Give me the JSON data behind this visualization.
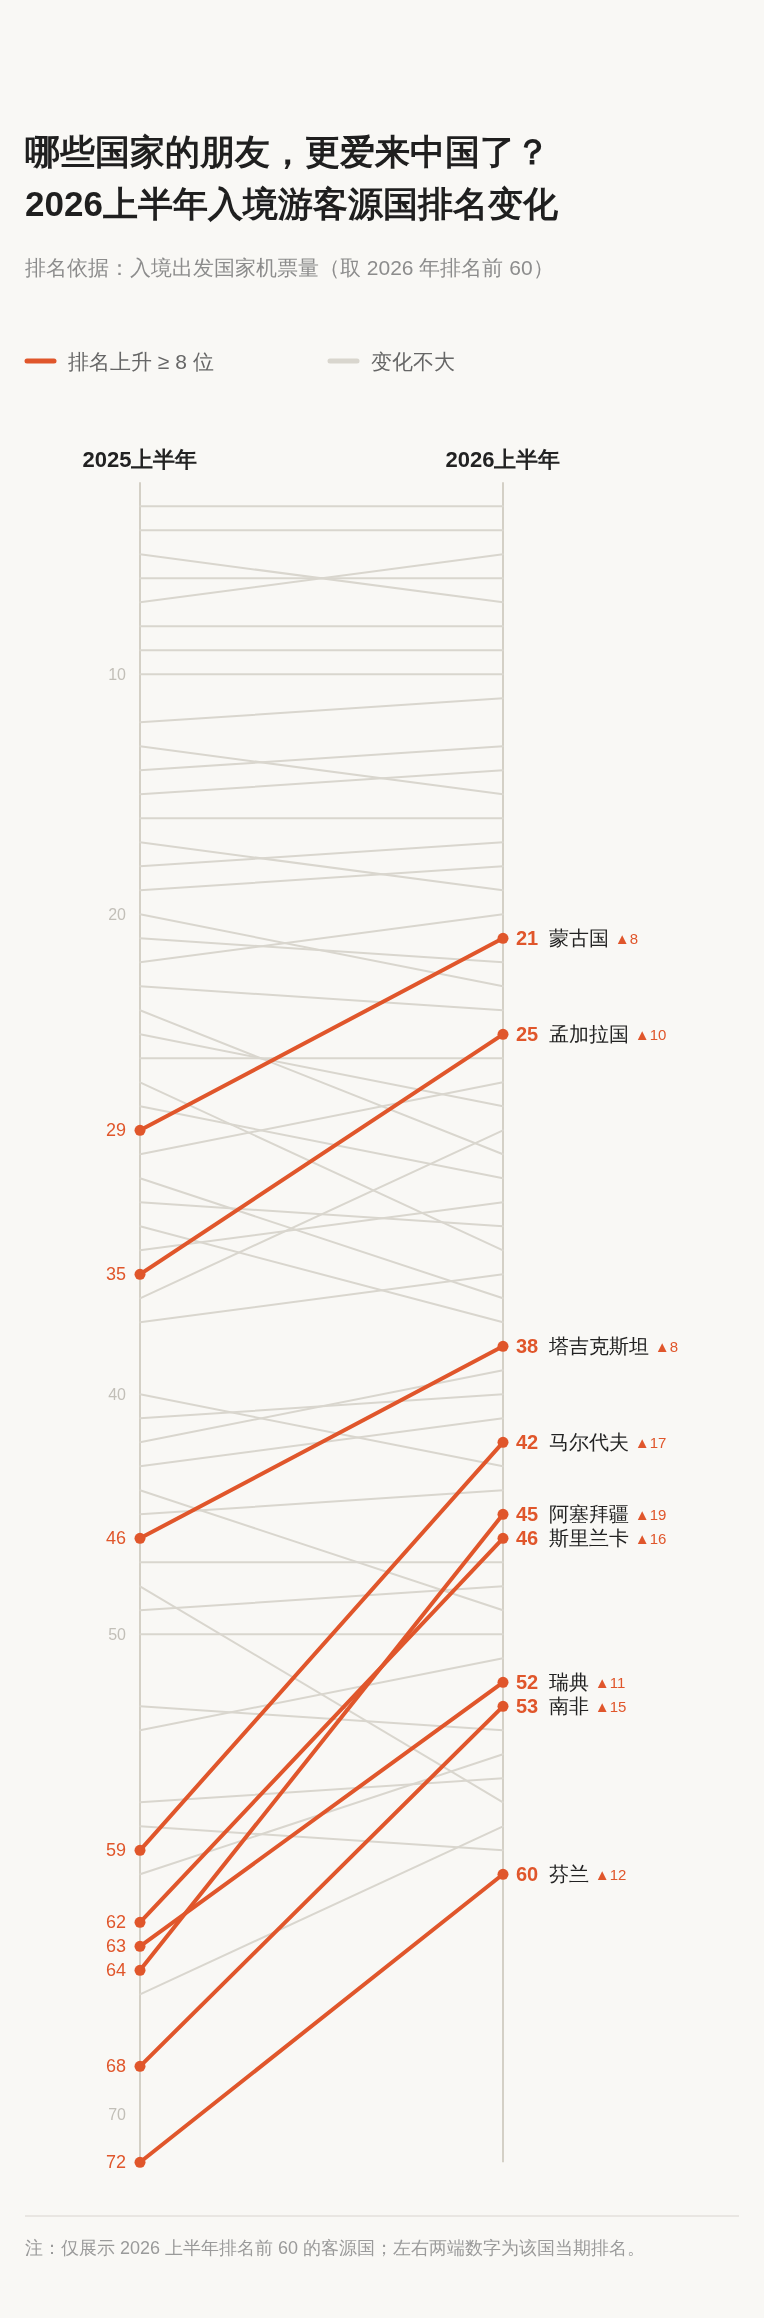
{
  "chart_data": {
    "type": "line",
    "title": "哪些国家的朋友，更爱来中国了？\n2026上半年入境游客源国排名变化",
    "subtitle": "排名依据：入境出发国家机票量（取 2026 年排名前 60）",
    "legend": "top left",
    "categories": [
      "2025上半年",
      "2026上半年"
    ],
    "ylim": [
      72,
      2
    ],
    "yticks": [
      10,
      20,
      40,
      50,
      70
    ],
    "ref_lines": [
      {
        "axis": "x",
        "value": "2025上半年",
        "color": "#d4d0c6"
      },
      {
        "axis": "x",
        "value": "2026上半年",
        "color": "#d4d0c6"
      }
    ],
    "series": [
      {
        "name": "排名上升 ≥ 8 位",
        "color": "#e0562b",
        "marker": "circle",
        "values": [
          29,
          21
        ],
        "value_labels": [
          "29",
          "21"
        ]
      },
      {
        "color": "#e0562b",
        "marker": "circle",
        "values": [
          35,
          25
        ],
        "value_labels": [
          "35",
          "25"
        ]
      },
      {
        "color": "#e0562b",
        "marker": "circle",
        "values": [
          46,
          38
        ],
        "value_labels": [
          "46",
          "38"
        ]
      },
      {
        "color": "#e0562b",
        "marker": "circle",
        "values": [
          59,
          42
        ],
        "value_labels": [
          "59",
          "42"
        ]
      },
      {
        "color": "#e0562b",
        "marker": "circle",
        "values": [
          64,
          45
        ],
        "value_labels": [
          "64",
          "45"
        ]
      },
      {
        "color": "#e0562b",
        "marker": "circle",
        "values": [
          62,
          46
        ],
        "value_labels": [
          "62",
          "46"
        ]
      },
      {
        "color": "#e0562b",
        "marker": "circle",
        "values": [
          63,
          52
        ],
        "value_labels": [
          "63",
          "52"
        ]
      },
      {
        "color": "#e0562b",
        "marker": "circle",
        "values": [
          68,
          53
        ],
        "value_labels": [
          "68",
          "53"
        ]
      },
      {
        "color": "#e0562b",
        "marker": "circle",
        "values": [
          72,
          60
        ],
        "value_labels": [
          "72",
          "60"
        ]
      },
      {
        "name": "变化不大",
        "color": "#d9d6ce",
        "values": [
          3,
          3
        ]
      },
      {
        "color": "#d9d6ce",
        "values": [
          4,
          4
        ]
      },
      {
        "color": "#d9d6ce",
        "values": [
          5,
          7
        ]
      },
      {
        "color": "#d9d6ce",
        "values": [
          6,
          6
        ]
      },
      {
        "color": "#d9d6ce",
        "values": [
          7,
          5
        ]
      },
      {
        "color": "#d9d6ce",
        "values": [
          8,
          8
        ]
      },
      {
        "color": "#d9d6ce",
        "values": [
          9,
          9
        ]
      },
      {
        "color": "#d9d6ce",
        "values": [
          10,
          10
        ]
      },
      {
        "color": "#d9d6ce",
        "values": [
          12,
          11
        ]
      },
      {
        "color": "#d9d6ce",
        "values": [
          13,
          15
        ]
      },
      {
        "color": "#d9d6ce",
        "values": [
          14,
          13
        ]
      },
      {
        "color": "#d9d6ce",
        "values": [
          15,
          14
        ]
      },
      {
        "color": "#d9d6ce",
        "values": [
          16,
          16
        ]
      },
      {
        "color": "#d9d6ce",
        "values": [
          17,
          19
        ]
      },
      {
        "color": "#d9d6ce",
        "values": [
          18,
          17
        ]
      },
      {
        "color": "#d9d6ce",
        "values": [
          19,
          18
        ]
      },
      {
        "color": "#d9d6ce",
        "values": [
          20,
          23
        ]
      },
      {
        "color": "#d9d6ce",
        "values": [
          21,
          22
        ]
      },
      {
        "color": "#d9d6ce",
        "values": [
          22,
          20
        ]
      },
      {
        "color": "#d9d6ce",
        "values": [
          23,
          24
        ]
      },
      {
        "color": "#d9d6ce",
        "values": [
          24,
          30
        ]
      },
      {
        "color": "#d9d6ce",
        "values": [
          25,
          28
        ]
      },
      {
        "color": "#d9d6ce",
        "values": [
          26,
          26
        ]
      },
      {
        "color": "#d9d6ce",
        "values": [
          27,
          34
        ]
      },
      {
        "color": "#d9d6ce",
        "values": [
          28,
          31
        ]
      },
      {
        "color": "#d9d6ce",
        "values": [
          30,
          27
        ]
      },
      {
        "color": "#d9d6ce",
        "values": [
          31,
          36
        ]
      },
      {
        "color": "#d9d6ce",
        "values": [
          32,
          33
        ]
      },
      {
        "color": "#d9d6ce",
        "values": [
          33,
          37
        ]
      },
      {
        "color": "#d9d6ce",
        "values": [
          34,
          32
        ]
      },
      {
        "color": "#d9d6ce",
        "values": [
          36,
          29
        ]
      },
      {
        "color": "#d9d6ce",
        "values": [
          37,
          35
        ]
      },
      {
        "color": "#d9d6ce",
        "values": [
          40,
          43
        ]
      },
      {
        "color": "#d9d6ce",
        "values": [
          41,
          40
        ]
      },
      {
        "color": "#d9d6ce",
        "values": [
          42,
          39
        ]
      },
      {
        "color": "#d9d6ce",
        "values": [
          43,
          41
        ]
      },
      {
        "color": "#d9d6ce",
        "values": [
          44,
          49
        ]
      },
      {
        "color": "#d9d6ce",
        "values": [
          45,
          44
        ]
      },
      {
        "color": "#d9d6ce",
        "values": [
          47,
          47
        ]
      },
      {
        "color": "#d9d6ce",
        "values": [
          48,
          57
        ]
      },
      {
        "color": "#d9d6ce",
        "values": [
          49,
          48
        ]
      },
      {
        "color": "#d9d6ce",
        "values": [
          50,
          50
        ]
      },
      {
        "color": "#d9d6ce",
        "values": [
          53,
          54
        ]
      },
      {
        "color": "#d9d6ce",
        "values": [
          54,
          51
        ]
      },
      {
        "color": "#d9d6ce",
        "values": [
          57,
          56
        ]
      },
      {
        "color": "#d9d6ce",
        "values": [
          58,
          59
        ]
      },
      {
        "color": "#d9d6ce",
        "values": [
          60,
          55
        ]
      },
      {
        "color": "#d9d6ce",
        "values": [
          65,
          58
        ]
      }
    ],
    "annotations": [
      {
        "text": "蒙古国 ▲8",
        "x": "2026上半年",
        "y": 21
      },
      {
        "text": "孟加拉国 ▲10",
        "x": "2026上半年",
        "y": 25
      },
      {
        "text": "塔吉克斯坦 ▲8",
        "x": "2026上半年",
        "y": 38
      },
      {
        "text": "马尔代夫 ▲17",
        "x": "2026上半年",
        "y": 42
      },
      {
        "text": "阿塞拜疆 ▲19",
        "x": "2026上半年",
        "y": 45
      },
      {
        "text": "斯里兰卡 ▲16",
        "x": "2026上半年",
        "y": 46
      },
      {
        "text": "瑞典 ▲11",
        "x": "2026上半年",
        "y": 52
      },
      {
        "text": "南非 ▲15",
        "x": "2026上半年",
        "y": 53
      },
      {
        "text": "芬兰 ▲12",
        "x": "2026上半年",
        "y": 60
      },
      "注：仅展示 2026 上半年排名前 60 的客源国；左右两端数字为该国当期排名。"
    ]
  }
}
